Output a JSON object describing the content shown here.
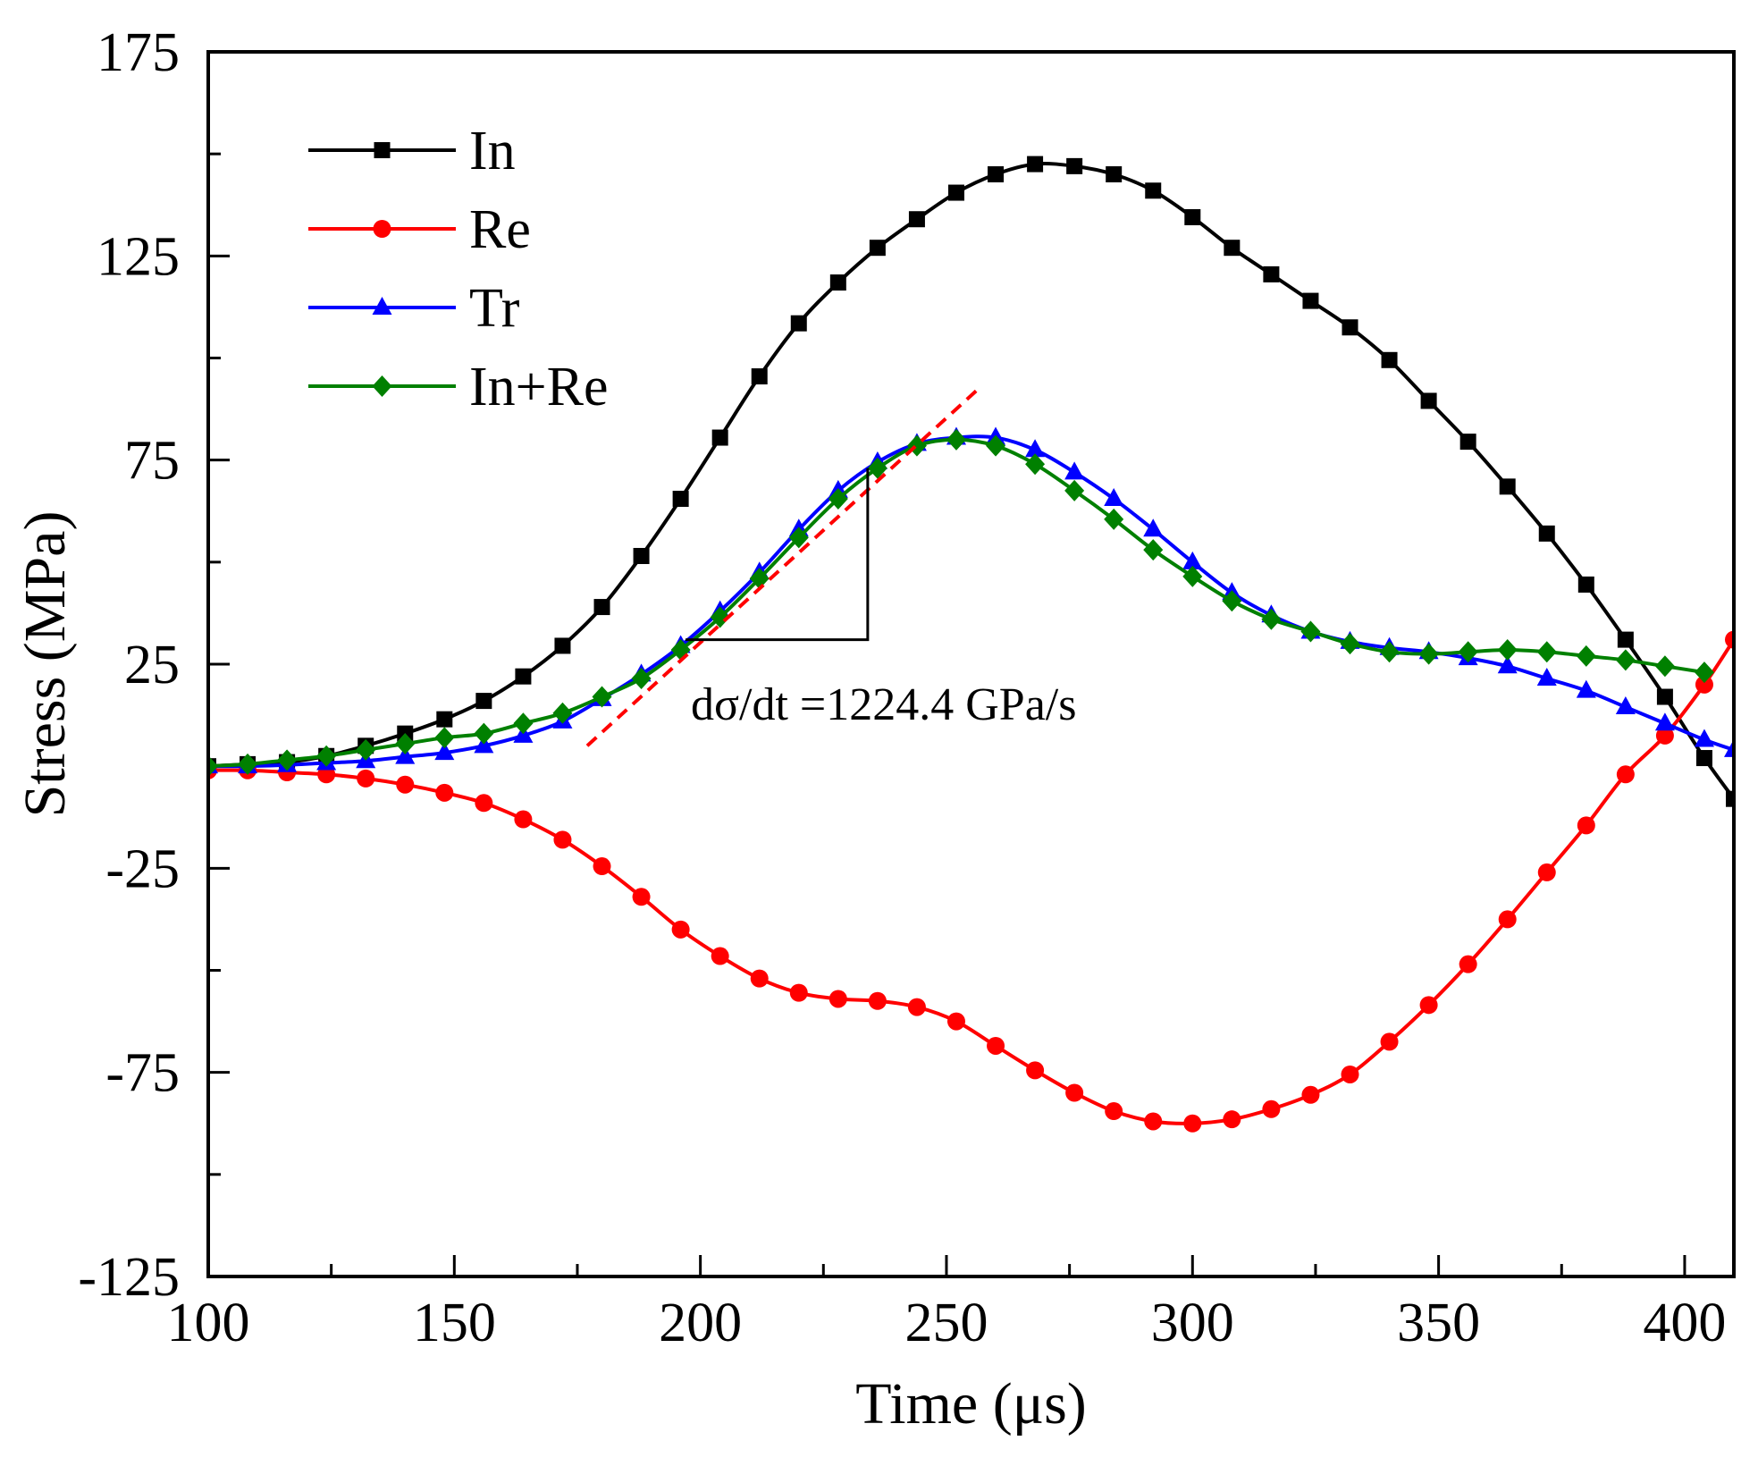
{
  "chart_data": {
    "type": "line",
    "xlabel": "Time (μs)",
    "ylabel": "Stress (MPa)",
    "xlim": [
      100,
      410
    ],
    "ylim": [
      -125,
      175
    ],
    "xticks": [
      "100",
      "150",
      "200",
      "250",
      "300",
      "350",
      "400"
    ],
    "yticks": [
      "175",
      "125",
      "75",
      "25",
      "-25",
      "-75",
      "-125"
    ],
    "legend_position": "top-left",
    "series": [
      {
        "name": "In",
        "color": "#000000",
        "marker": "square",
        "x": [
          100,
          108,
          116,
          124,
          132,
          140,
          148,
          156,
          164,
          172,
          180,
          188,
          196,
          204,
          212,
          220,
          228,
          236,
          244,
          252,
          260,
          268,
          276,
          284,
          292,
          300,
          308,
          316,
          324,
          332,
          340,
          348,
          356,
          364,
          372,
          380,
          388,
          396,
          404,
          410
        ],
        "y": [
          0,
          0.5,
          1,
          2.5,
          5,
          8,
          11.5,
          16,
          22,
          29.5,
          39,
          51.5,
          65.5,
          80.5,
          95.5,
          108.5,
          118.5,
          127,
          134,
          140.5,
          145,
          147.5,
          147,
          145,
          141,
          134.5,
          127,
          120.5,
          114,
          107.5,
          99.5,
          89.5,
          79.5,
          68.5,
          57,
          44.5,
          31,
          17,
          2,
          -8
        ]
      },
      {
        "name": "Re",
        "color": "#ff0000",
        "marker": "circle",
        "x": [
          100,
          108,
          116,
          124,
          132,
          140,
          148,
          156,
          164,
          172,
          180,
          188,
          196,
          204,
          212,
          220,
          228,
          236,
          244,
          252,
          260,
          268,
          276,
          284,
          292,
          300,
          308,
          316,
          324,
          332,
          340,
          348,
          356,
          364,
          372,
          380,
          388,
          396,
          404,
          410
        ],
        "y": [
          -1,
          -1,
          -1.5,
          -2,
          -3,
          -4.5,
          -6.5,
          -9,
          -13,
          -18,
          -24.5,
          -32,
          -40,
          -46.5,
          -52,
          -55.5,
          -57,
          -57.5,
          -59,
          -62.5,
          -68.5,
          -74.5,
          -80,
          -84.5,
          -87,
          -87.5,
          -86.5,
          -84,
          -80.5,
          -75.5,
          -67.5,
          -58.5,
          -48.5,
          -37.5,
          -26,
          -14.5,
          -2,
          7.5,
          20,
          31
        ]
      },
      {
        "name": "Tr",
        "color": "#0000ff",
        "marker": "triangle",
        "x": [
          100,
          108,
          116,
          124,
          132,
          140,
          148,
          156,
          164,
          172,
          180,
          188,
          196,
          204,
          212,
          220,
          228,
          236,
          244,
          252,
          260,
          268,
          276,
          284,
          292,
          300,
          308,
          316,
          324,
          332,
          340,
          348,
          356,
          364,
          372,
          380,
          388,
          396,
          404,
          410
        ],
        "y": [
          0,
          0,
          0.3,
          0.8,
          1.3,
          2.3,
          3.3,
          5,
          7.5,
          11,
          16.5,
          22.5,
          29.5,
          38,
          47.5,
          58,
          67.5,
          74.5,
          79,
          80.5,
          80.5,
          77.5,
          72,
          65.5,
          58,
          50,
          42.5,
          37,
          33,
          30.5,
          29,
          28,
          26.5,
          24.5,
          21.5,
          18.5,
          14.5,
          10.5,
          6.5,
          4
        ]
      },
      {
        "name": "In+Re",
        "color": "#008000",
        "marker": "diamond",
        "x": [
          100,
          108,
          116,
          124,
          132,
          140,
          148,
          156,
          164,
          172,
          180,
          188,
          196,
          204,
          212,
          220,
          228,
          236,
          244,
          252,
          260,
          268,
          276,
          284,
          292,
          300,
          308,
          316,
          324,
          332,
          340,
          348,
          356,
          364,
          372,
          380,
          388,
          396,
          404
        ],
        "y": [
          0,
          0.5,
          1.5,
          2.5,
          4,
          5.5,
          7,
          8,
          10.5,
          13,
          17,
          21.5,
          28.5,
          36.5,
          46,
          56,
          65.5,
          73,
          78.5,
          80,
          78.5,
          74,
          67.5,
          60.5,
          53,
          46.5,
          40.5,
          36,
          33,
          30,
          28,
          27.5,
          28,
          28.5,
          28,
          27,
          26,
          24.5,
          23
        ]
      }
    ],
    "annotations": [
      {
        "text": "dσ/dt =1224.4 GPa/s",
        "tangent_line": {
          "from": [
            177,
            5
          ],
          "to": [
            257,
            93
          ],
          "color": "#ff0000",
          "style": "dashed"
        },
        "slope_triangle": {
          "corner": [
            234,
            31
          ],
          "top": [
            234,
            73
          ],
          "left": [
            197,
            31
          ]
        }
      }
    ]
  }
}
